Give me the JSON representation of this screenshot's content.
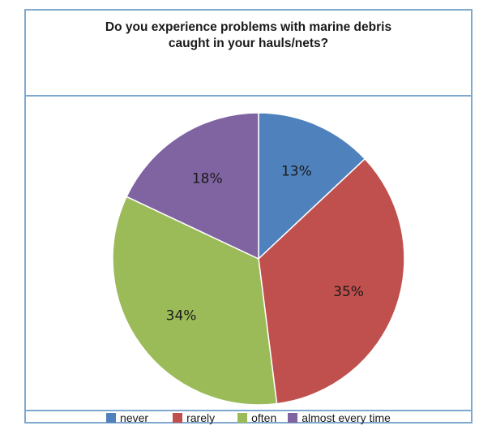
{
  "chart_data": {
    "type": "pie",
    "title": "Do you experience problems with marine debris\ncaught in your hauls/nets?",
    "categories": [
      "never",
      "rarely",
      "often",
      "almost every time"
    ],
    "values": [
      13,
      35,
      34,
      18
    ],
    "value_labels": [
      "13%",
      "35%",
      "34%",
      "18%"
    ],
    "colors": [
      "#4f81bd",
      "#c0504d",
      "#9bbb59",
      "#8064a2"
    ],
    "start_angle": "12 o'clock, clockwise",
    "legend_position": "bottom"
  }
}
